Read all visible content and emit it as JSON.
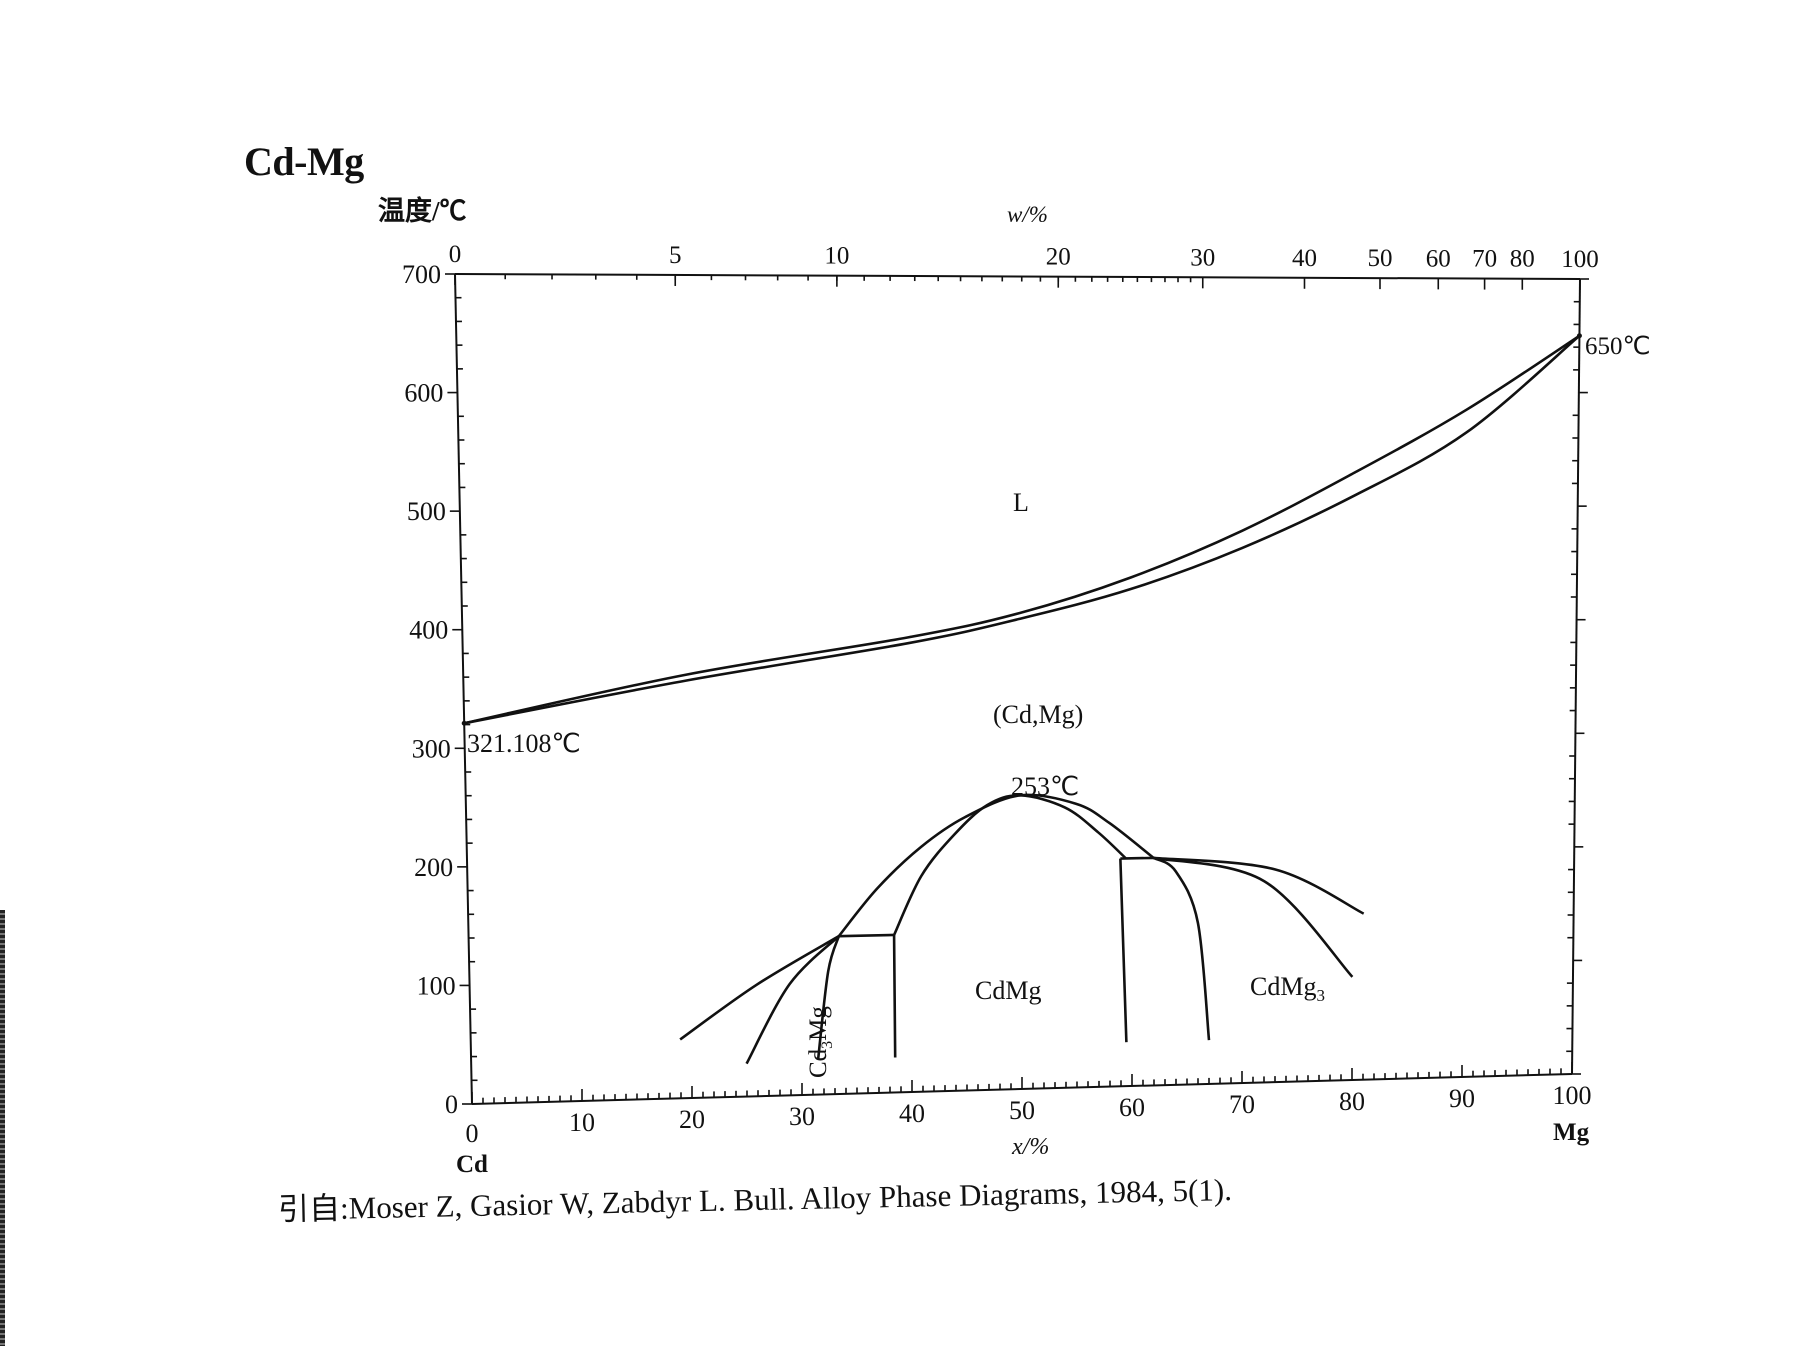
{
  "title": "Cd-Mg",
  "y_axis_label": "温度/℃",
  "top_axis_label": "w/%",
  "bottom_axis_label": "x/%",
  "left_element": "Cd",
  "right_element": "Mg",
  "y_ticks": [
    "0",
    "100",
    "200",
    "300",
    "400",
    "500",
    "600",
    "700"
  ],
  "x_ticks": [
    "0",
    "10",
    "20",
    "30",
    "40",
    "50",
    "60",
    "70",
    "80",
    "90",
    "100"
  ],
  "top_ticks": [
    "0",
    "5",
    "10",
    "20",
    "30",
    "40",
    "50",
    "60",
    "70",
    "80",
    "100"
  ],
  "annotations": {
    "cd_melting": "321.108℃",
    "mg_melting": "650℃",
    "max_point": "253℃"
  },
  "phase_labels": {
    "liquid": "L",
    "solid_solution": "(Cd,Mg)",
    "cdmg": "CdMg",
    "cdmg3": "CdMg",
    "cdmg3_sub": "3",
    "cd3mg_a": "Cd",
    "cd3mg_sub": "3",
    "cd3mg_b": "Mg"
  },
  "citation": "引自:Moser Z, Gasior W, Zabdyr L. Bull. Alloy Phase Diagrams, 1984, 5(1).",
  "chart_data": {
    "type": "phase-diagram",
    "x_unit": "x/% (at.% Mg)",
    "y_unit": "℃",
    "xlim": [
      0,
      100
    ],
    "ylim": [
      0,
      700
    ],
    "top_axis_wt_percent_ticks": [
      0,
      5,
      10,
      20,
      30,
      40,
      50,
      60,
      70,
      80,
      100
    ],
    "liquidus": [
      [
        0,
        321.108
      ],
      [
        20,
        360
      ],
      [
        40,
        390
      ],
      [
        50,
        410
      ],
      [
        60,
        440
      ],
      [
        70,
        480
      ],
      [
        80,
        530
      ],
      [
        90,
        585
      ],
      [
        100,
        650
      ]
    ],
    "solidus": [
      [
        0,
        321.108
      ],
      [
        20,
        355
      ],
      [
        40,
        385
      ],
      [
        50,
        405
      ],
      [
        60,
        430
      ],
      [
        70,
        465
      ],
      [
        80,
        510
      ],
      [
        90,
        565
      ],
      [
        100,
        650
      ]
    ],
    "cdmg_outer_dome": [
      [
        33.5,
        135
      ],
      [
        37,
        175
      ],
      [
        41,
        210
      ],
      [
        45,
        235
      ],
      [
        50,
        253
      ],
      [
        55,
        245
      ],
      [
        58,
        228
      ],
      [
        62,
        197
      ]
    ],
    "cdmg_inner_dome": [
      [
        38.5,
        135
      ],
      [
        41,
        185
      ],
      [
        44,
        220
      ],
      [
        47,
        245
      ],
      [
        50,
        253
      ],
      [
        54,
        242
      ],
      [
        57,
        220
      ],
      [
        59.5,
        197
      ]
    ],
    "cd3mg_left_outer": [
      [
        19,
        50
      ],
      [
        26,
        95
      ],
      [
        33.5,
        135
      ]
    ],
    "cd3mg_left_inner": [
      [
        25,
        28
      ],
      [
        29,
        95
      ],
      [
        33.5,
        135
      ]
    ],
    "cd3mg_right": [
      [
        31.5,
        30
      ],
      [
        32.5,
        105
      ],
      [
        33.5,
        135
      ]
    ],
    "cd3mg_peritectic_line": [
      [
        33.5,
        135
      ],
      [
        38.5,
        135
      ]
    ],
    "cdmg_left_boundary": [
      [
        38.5,
        30
      ],
      [
        38.5,
        135
      ]
    ],
    "cdmg_right_boundary": [
      [
        59.5,
        38
      ],
      [
        59,
        197
      ]
    ],
    "cdmg3_tie_line": [
      [
        59,
        197
      ],
      [
        62,
        197
      ]
    ],
    "cdmg3_left": [
      [
        67,
        38
      ],
      [
        66,
        140
      ],
      [
        64,
        185
      ],
      [
        62,
        197
      ]
    ],
    "cdmg3_right_inner": [
      [
        62,
        197
      ],
      [
        72,
        175
      ],
      [
        80,
        90
      ]
    ],
    "cdmg3_right_outer": [
      [
        62,
        197
      ],
      [
        73,
        185
      ],
      [
        81,
        145
      ]
    ]
  }
}
